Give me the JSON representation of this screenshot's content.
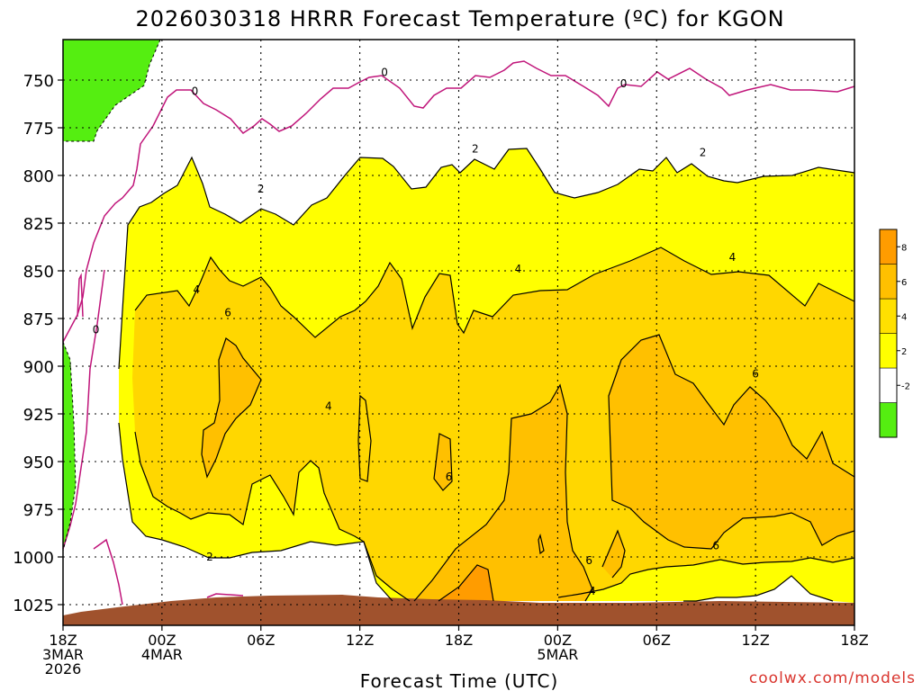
{
  "chart_data": {
    "type": "heatmap",
    "title": "2026030318 HRRR Forecast Temperature (ºC) for KGON",
    "xlabel": "Forecast Time (UTC)",
    "ylabel": "",
    "credit": "coolwx.com/models",
    "x_ticks": [
      {
        "hour": 0,
        "lines": [
          "18Z",
          "3MAR",
          "2026"
        ]
      },
      {
        "hour": 6,
        "lines": [
          "00Z",
          "4MAR"
        ]
      },
      {
        "hour": 12,
        "lines": [
          "06Z"
        ]
      },
      {
        "hour": 18,
        "lines": [
          "12Z"
        ]
      },
      {
        "hour": 24,
        "lines": [
          "18Z"
        ]
      },
      {
        "hour": 30,
        "lines": [
          "00Z",
          "5MAR"
        ]
      },
      {
        "hour": 36,
        "lines": [
          "06Z"
        ]
      },
      {
        "hour": 42,
        "lines": [
          "12Z"
        ]
      },
      {
        "hour": 48,
        "lines": [
          "18Z"
        ]
      }
    ],
    "xlim": [
      0,
      48
    ],
    "y_ticks": [
      "750",
      "775",
      "800",
      "825",
      "850",
      "875",
      "900",
      "925",
      "950",
      "975",
      "1000",
      "1025"
    ],
    "ylim_hpa": [
      1035,
      730
    ],
    "grid": true,
    "colorbar": {
      "levels": [
        "-2",
        "2",
        "4",
        "6",
        "8"
      ],
      "colors": [
        "#55ee11",
        "#ffffff",
        "#ffff00",
        "#ffe000",
        "#ffc000",
        "#ff9c00"
      ]
    },
    "contour_labels": [
      {
        "text": "0",
        "hour": 2.0,
        "hpa": 881
      },
      {
        "text": "0",
        "hour": 8.0,
        "hpa": 756
      },
      {
        "text": "0",
        "hour": 19.5,
        "hpa": 746
      },
      {
        "text": "0",
        "hour": 34.0,
        "hpa": 752
      },
      {
        "text": "2",
        "hour": 12.0,
        "hpa": 807
      },
      {
        "text": "2",
        "hour": 25.0,
        "hpa": 786
      },
      {
        "text": "2",
        "hour": 38.8,
        "hpa": 788
      },
      {
        "text": "2",
        "hour": 8.9,
        "hpa": 1000
      },
      {
        "text": "4",
        "hour": 8.1,
        "hpa": 860
      },
      {
        "text": "4",
        "hour": 27.6,
        "hpa": 849
      },
      {
        "text": "4",
        "hour": 40.6,
        "hpa": 843
      },
      {
        "text": "4",
        "hour": 16.1,
        "hpa": 921
      },
      {
        "text": "4",
        "hour": 32.1,
        "hpa": 1018
      },
      {
        "text": "6",
        "hour": 10.0,
        "hpa": 872
      },
      {
        "text": "6",
        "hour": 23.4,
        "hpa": 958
      },
      {
        "text": "6",
        "hour": 31.9,
        "hpa": 1002
      },
      {
        "text": "6",
        "hour": 39.6,
        "hpa": 994
      },
      {
        "text": "6",
        "hour": 42.0,
        "hpa": 904
      }
    ]
  }
}
